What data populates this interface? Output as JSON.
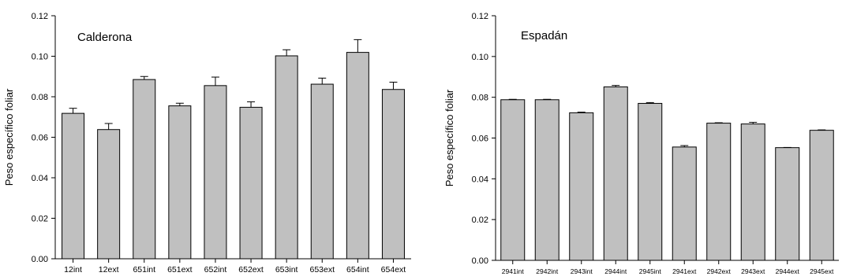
{
  "chart_data": [
    {
      "type": "bar",
      "title": "",
      "annotation": "Calderona",
      "xlabel": "",
      "ylabel": "Peso específico foliar",
      "ylim": [
        0,
        0.12
      ],
      "yticks": [
        "0.00",
        "0.02",
        "0.04",
        "0.06",
        "0.08",
        "0.10",
        "0.12"
      ],
      "categories": [
        "12int",
        "12ext",
        "651int",
        "651ext",
        "652int",
        "652ext",
        "653int",
        "653ext",
        "654int",
        "654ext"
      ],
      "values": [
        0.0718,
        0.0638,
        0.0885,
        0.0755,
        0.0855,
        0.0748,
        0.1002,
        0.0862,
        0.1019,
        0.0836
      ],
      "errors": [
        0.0025,
        0.003,
        0.0015,
        0.0013,
        0.0042,
        0.0027,
        0.003,
        0.003,
        0.0063,
        0.0036
      ],
      "bar_color": "#c0c0c0",
      "grid": false
    },
    {
      "type": "bar",
      "title": "",
      "annotation": "Espadán",
      "xlabel": "",
      "ylabel": "Peso específico foliar",
      "ylim": [
        0,
        0.12
      ],
      "yticks": [
        "0.00",
        "0.02",
        "0.04",
        "0.06",
        "0.08",
        "0.10",
        "0.12"
      ],
      "categories": [
        "2941int",
        "2942int",
        "2943int",
        "2944int",
        "2945int",
        "2941ext",
        "2942ext",
        "2943ext",
        "2944ext",
        "2945ext"
      ],
      "values": [
        0.0788,
        0.0788,
        0.0724,
        0.0851,
        0.077,
        0.0556,
        0.0673,
        0.0669,
        0.0553,
        0.0638
      ],
      "errors": [
        0.0002,
        0.0002,
        0.0003,
        0.0007,
        0.0004,
        0.0007,
        0.0002,
        0.0008,
        0.0001,
        0.0002
      ],
      "bar_color": "#c0c0c0",
      "grid": false
    }
  ]
}
